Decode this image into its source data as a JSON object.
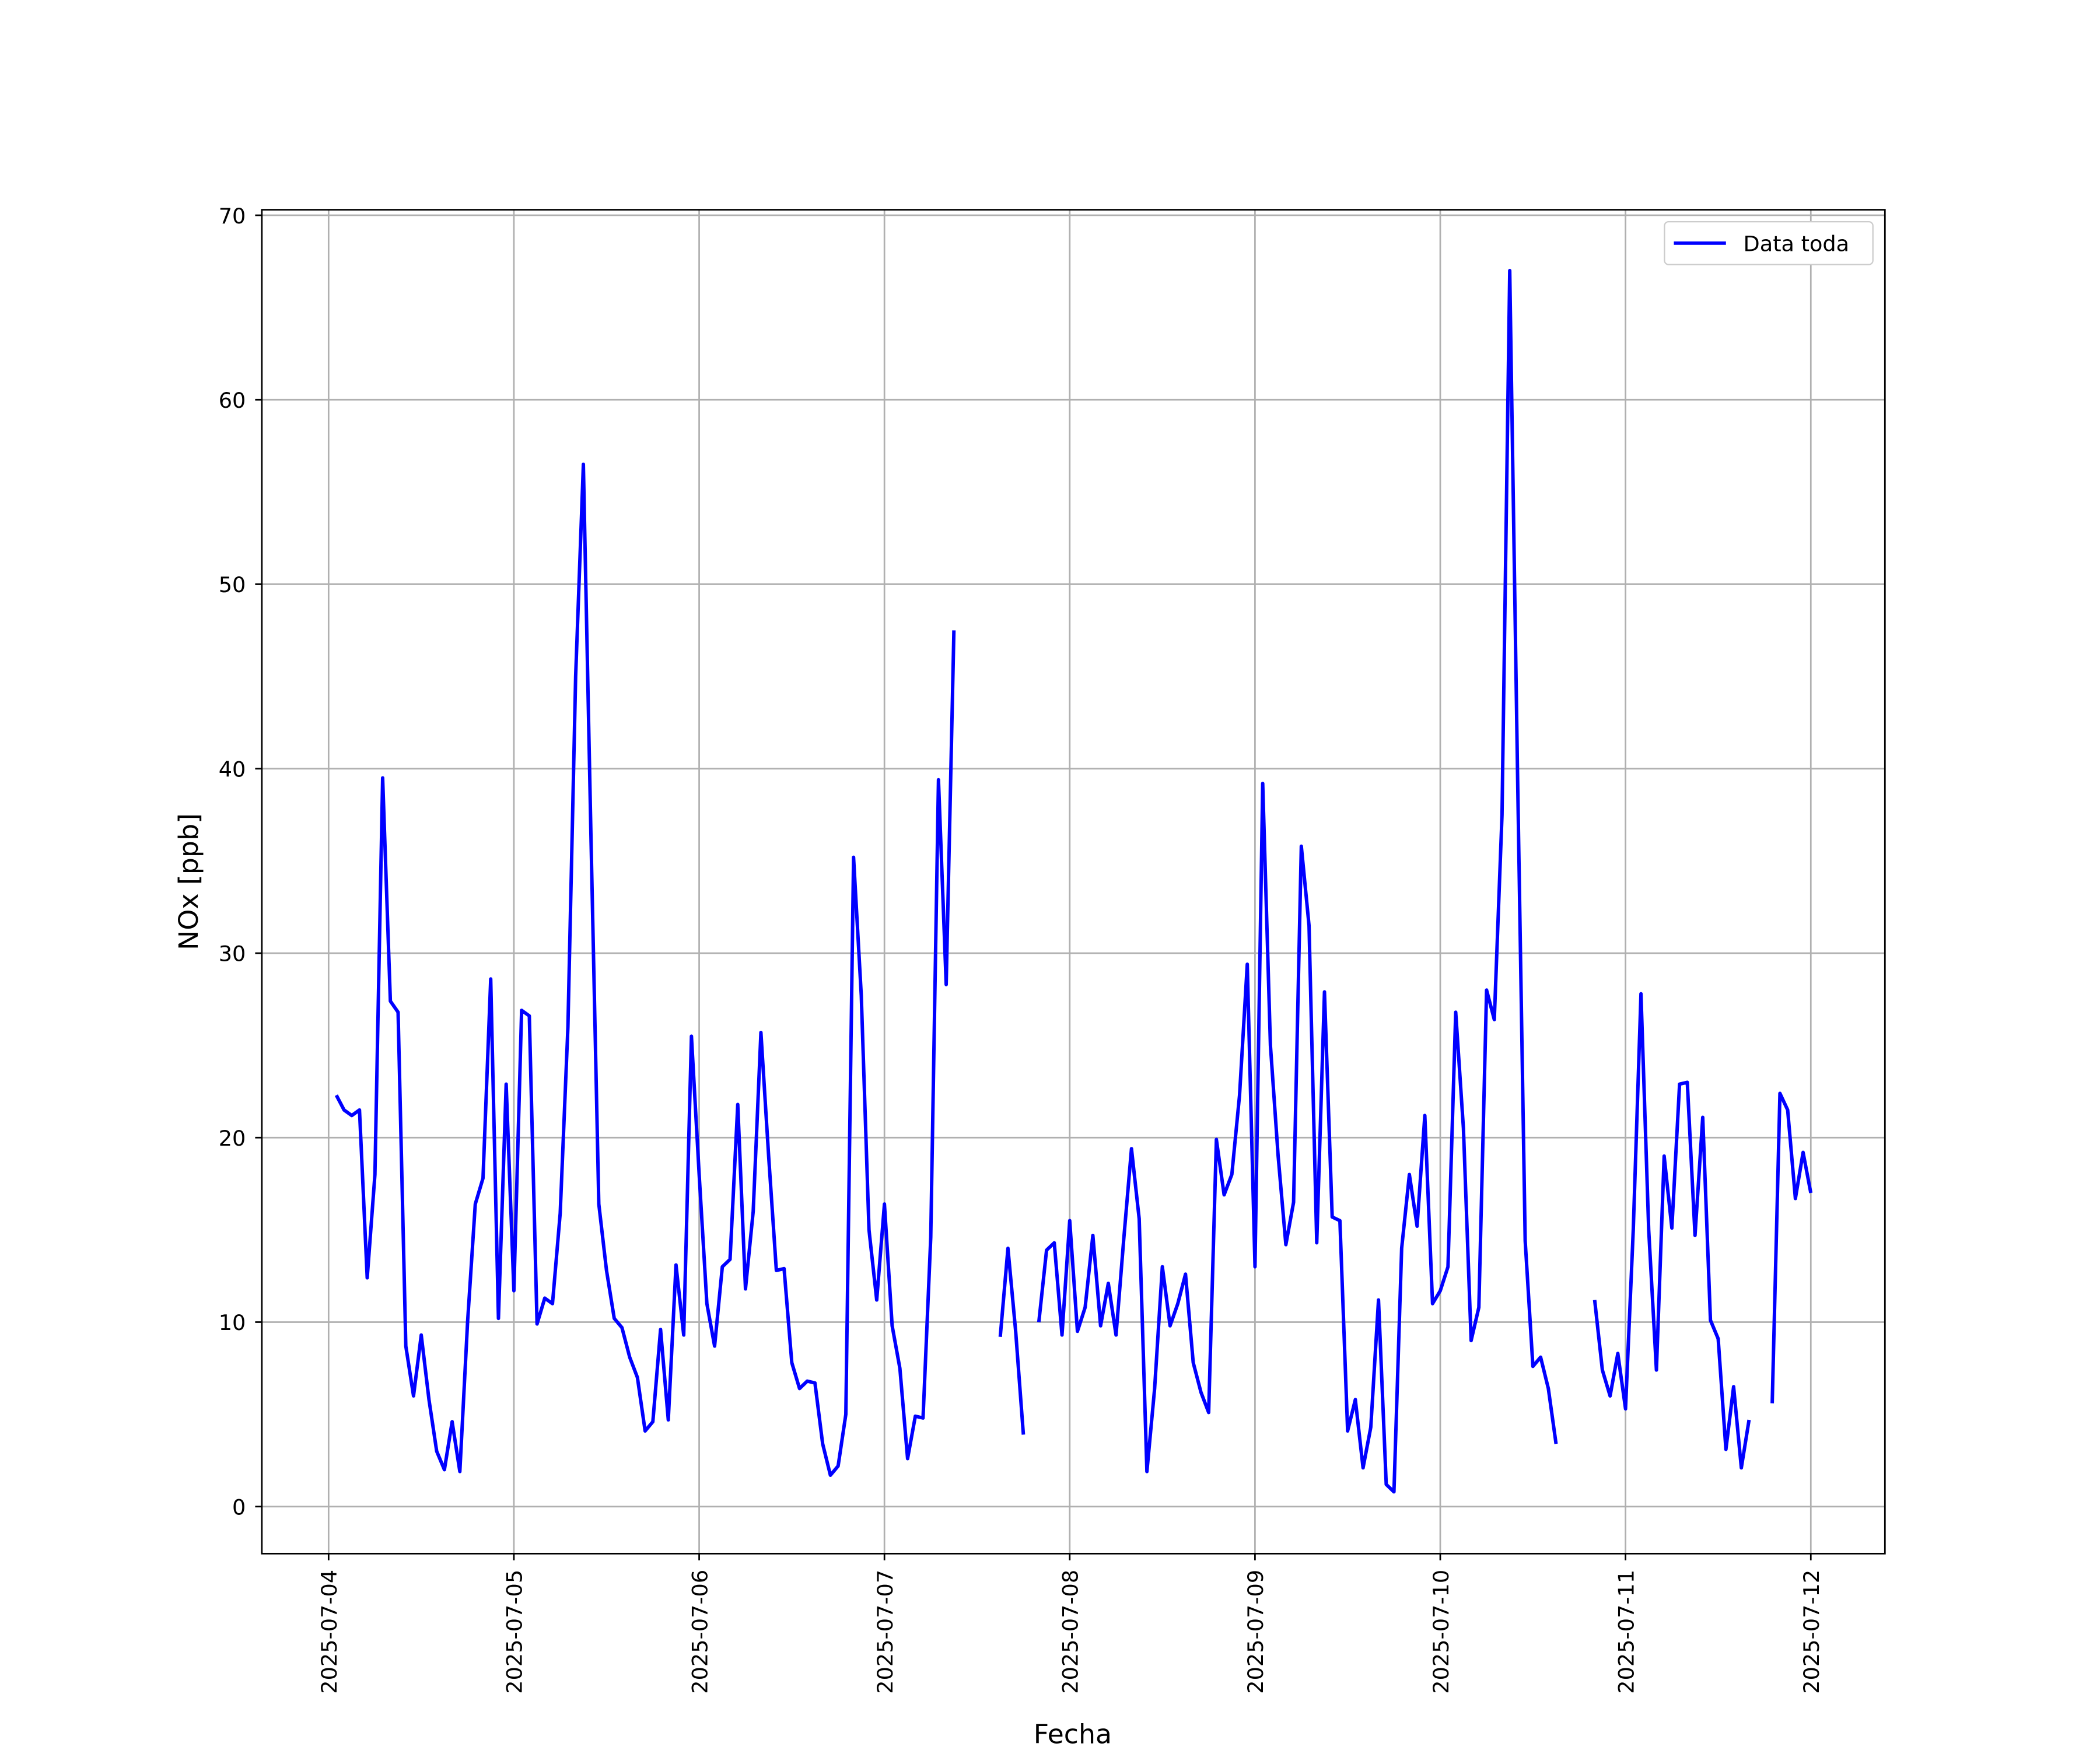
{
  "chart_data": {
    "type": "line",
    "xlabel": "Fecha",
    "ylabel": "NOx [ppb]",
    "x": [
      1,
      2,
      3,
      4,
      5,
      6,
      7,
      8,
      9,
      10,
      11,
      12,
      13,
      14,
      15,
      16,
      17,
      18,
      19,
      20,
      21,
      22,
      23,
      24,
      25,
      26,
      27,
      28,
      29,
      30,
      31,
      32,
      33,
      34,
      35,
      36,
      37,
      38,
      39,
      40,
      41,
      42,
      43,
      44,
      45,
      46,
      47,
      48,
      49,
      50,
      51,
      52,
      53,
      54,
      55,
      56,
      57,
      58,
      59,
      60,
      61,
      62,
      63,
      64,
      65,
      66,
      67,
      68,
      69,
      70,
      71,
      72,
      73,
      74,
      75,
      76,
      77,
      78,
      79,
      80,
      81,
      82,
      83,
      84,
      85,
      86,
      87,
      88,
      89,
      90,
      91,
      92,
      93,
      94,
      95,
      96,
      97,
      98,
      99,
      100,
      101,
      102,
      103,
      104,
      105,
      106,
      107,
      108,
      109,
      110,
      111,
      112,
      113,
      114,
      115,
      116,
      117,
      118,
      119,
      120,
      121,
      122,
      123,
      124,
      125,
      126,
      127,
      128,
      129,
      130,
      131,
      132,
      133,
      134,
      135,
      136,
      137,
      138,
      139,
      140,
      141,
      142,
      143,
      144,
      145,
      146,
      147,
      148,
      149,
      150,
      151,
      152,
      153,
      154,
      155,
      156,
      157,
      158,
      159,
      160,
      161,
      162,
      163,
      164,
      165,
      166,
      167,
      168,
      169,
      170,
      171,
      172,
      173,
      174,
      175,
      176,
      177,
      178,
      179,
      180,
      181,
      182,
      183,
      184,
      185,
      186,
      187,
      188,
      189,
      190,
      191,
      192
    ],
    "series": [
      {
        "name": "Data toda",
        "color": "#0000ff",
        "values": [
          22.3,
          21.5,
          21.2,
          21.5,
          12.4,
          18,
          39.5,
          27.4,
          26.8,
          8.7,
          6,
          9.3,
          5.8,
          3,
          2,
          4.6,
          1.9,
          10,
          16.4,
          17.8,
          28.6,
          10.2,
          22.9,
          11.7,
          26.9,
          26.6,
          9.9,
          11.3,
          11,
          15.9,
          26,
          45,
          56.5,
          36,
          16.4,
          12.8,
          10.2,
          9.7,
          8.1,
          7,
          4.1,
          4.6,
          9.6,
          4.7,
          13.1,
          9.3,
          25.5,
          18,
          11,
          8.7,
          13,
          13.4,
          21.8,
          11.8,
          16,
          25.7,
          19,
          12.8,
          12.9,
          7.8,
          6.4,
          6.8,
          6.7,
          3.4,
          1.7,
          2.2,
          5,
          35.2,
          27.7,
          15,
          11.2,
          16.4,
          9.8,
          7.5,
          2.6,
          4.9,
          4.8,
          14.6,
          39.4,
          28.3,
          47.5,
          null,
          null,
          null,
          null,
          null,
          9.2,
          14,
          9.5,
          3.9,
          null,
          10,
          13.9,
          14.3,
          9.3,
          15.5,
          9.5,
          10.8,
          14.7,
          9.8,
          12.1,
          9.3,
          14.5,
          19.4,
          15.6,
          1.9,
          6.4,
          13,
          9.8,
          11,
          12.6,
          7.8,
          6.2,
          5.1,
          19.9,
          16.9,
          18,
          22.3,
          29.4,
          13,
          39.2,
          25,
          19,
          14.2,
          16.5,
          35.8,
          31.5,
          14.3,
          27.9,
          15.7,
          15.5,
          4.1,
          5.8,
          2.1,
          4.3,
          11.2,
          1.2,
          0.8,
          14,
          18,
          15.2,
          21.2,
          11,
          11.7,
          13,
          26.8,
          20.5,
          9,
          10.8,
          28,
          26.4,
          37.5,
          67,
          40,
          14.4,
          7.6,
          8.1,
          6.4,
          3.4,
          null,
          null,
          null,
          null,
          11.2,
          7.4,
          6,
          8.3,
          5.3,
          15,
          27.8,
          15,
          7.4,
          19,
          15.1,
          22.9,
          23,
          14.7,
          21.1,
          10.1,
          9.1,
          3.1,
          6.5,
          2.1,
          4.7,
          null,
          null,
          5.6,
          22.4,
          21.5,
          16.7,
          19.2,
          17
        ]
      }
    ],
    "xlim": [
      -8.65,
      201.6
    ],
    "ylim": [
      -2.55,
      70.3
    ],
    "xticks": [
      {
        "value": 0,
        "label": "2025-07-04"
      },
      {
        "value": 24,
        "label": "2025-07-05"
      },
      {
        "value": 48,
        "label": "2025-07-06"
      },
      {
        "value": 72,
        "label": "2025-07-07"
      },
      {
        "value": 96,
        "label": "2025-07-08"
      },
      {
        "value": 120,
        "label": "2025-07-09"
      },
      {
        "value": 144,
        "label": "2025-07-10"
      },
      {
        "value": 168,
        "label": "2025-07-11"
      },
      {
        "value": 192,
        "label": "2025-07-12"
      }
    ],
    "yticks": [
      0,
      10,
      20,
      30,
      40,
      50,
      60,
      70
    ],
    "grid": true,
    "legend": "upper right"
  }
}
